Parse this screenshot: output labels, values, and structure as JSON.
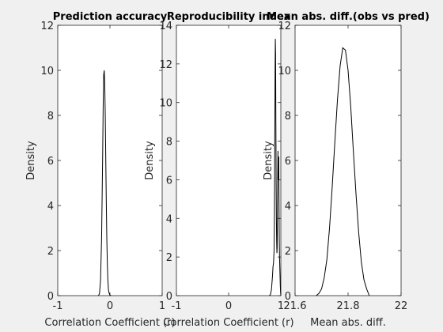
{
  "chart_data": [
    {
      "type": "line",
      "title": "Prediction accuracy",
      "xlabel": "Correlation Coefficient (r)",
      "ylabel": "Density",
      "xlim": [
        -1,
        1
      ],
      "ylim": [
        0,
        12
      ],
      "xticks": [
        -1,
        0,
        1
      ],
      "xtick_labels": [
        "-1",
        "0",
        "1"
      ],
      "yticks": [
        0,
        2,
        4,
        6,
        8,
        10,
        12
      ],
      "ytick_labels": [
        "0",
        "2",
        "4",
        "6",
        "8",
        "10",
        "12"
      ],
      "series": [
        {
          "x": [
            -0.22,
            -0.2,
            -0.18,
            -0.16,
            -0.14,
            -0.13,
            -0.12,
            -0.11,
            -0.1,
            -0.09,
            -0.08,
            -0.07,
            -0.06,
            -0.05,
            -0.04,
            -0.03,
            -0.02,
            -0.01,
            0.0,
            0.02
          ],
          "values": [
            0.0,
            0.1,
            0.7,
            2.6,
            6.2,
            8.4,
            9.8,
            10.0,
            9.4,
            8.0,
            6.0,
            4.1,
            2.5,
            1.4,
            0.7,
            0.3,
            0.15,
            0.07,
            0.02,
            0.0
          ]
        }
      ]
    },
    {
      "type": "line",
      "title": "Reproducibility index",
      "xlabel": "Correlation Coefficient (r)",
      "ylabel": "Density",
      "xlim": [
        -1,
        1
      ],
      "ylim": [
        0,
        14
      ],
      "xticks": [
        -1,
        0,
        1
      ],
      "xtick_labels": [
        "-1",
        "0",
        "1"
      ],
      "yticks": [
        0,
        2,
        4,
        6,
        8,
        10,
        12,
        14
      ],
      "ytick_labels": [
        "0",
        "2",
        "4",
        "6",
        "8",
        "10",
        "12",
        "14"
      ],
      "series": [
        {
          "x": [
            0.78,
            0.8,
            0.82,
            0.84,
            0.85,
            0.86,
            0.87,
            0.875,
            0.88,
            0.885,
            0.89,
            0.895,
            0.9,
            0.905,
            0.91,
            0.915,
            0.92,
            0.925,
            0.93,
            0.935,
            0.94,
            0.945,
            0.95,
            0.955,
            0.96,
            0.965,
            0.97,
            0.975,
            0.98,
            0.985,
            0.99,
            0.995,
            1.0
          ],
          "values": [
            0.0,
            0.05,
            0.3,
            1.0,
            1.5,
            1.7,
            2.3,
            3.5,
            5.5,
            8.5,
            11.5,
            13.3,
            12.5,
            9.0,
            6.0,
            4.0,
            2.8,
            2.2,
            2.5,
            4.0,
            6.0,
            7.5,
            6.0,
            7.0,
            7.2,
            5.0,
            3.0,
            2.0,
            1.5,
            1.0,
            0.5,
            0.2,
            0.0
          ]
        }
      ]
    },
    {
      "type": "line",
      "title": "Mean abs. diff.(obs vs pred)",
      "xlabel": "Mean abs. diff.",
      "ylabel": "Density",
      "xlim": [
        21.6,
        22
      ],
      "ylim": [
        0,
        12
      ],
      "xticks": [
        21.6,
        21.8,
        22
      ],
      "xtick_labels": [
        "21.6",
        "21.8",
        "22"
      ],
      "yticks": [
        0,
        2,
        4,
        6,
        8,
        10,
        12
      ],
      "ytick_labels": [
        "0",
        "2",
        "4",
        "6",
        "8",
        "10",
        "12"
      ],
      "series": [
        {
          "x": [
            21.68,
            21.69,
            21.7,
            21.71,
            21.72,
            21.73,
            21.74,
            21.75,
            21.76,
            21.77,
            21.78,
            21.79,
            21.8,
            21.81,
            21.82,
            21.83,
            21.84,
            21.85,
            21.86,
            21.87,
            21.88
          ],
          "values": [
            0.0,
            0.1,
            0.3,
            0.8,
            1.6,
            3.0,
            4.8,
            6.8,
            8.7,
            10.2,
            11.0,
            10.9,
            10.0,
            8.4,
            6.4,
            4.5,
            2.8,
            1.5,
            0.7,
            0.3,
            0.0
          ]
        }
      ]
    }
  ]
}
